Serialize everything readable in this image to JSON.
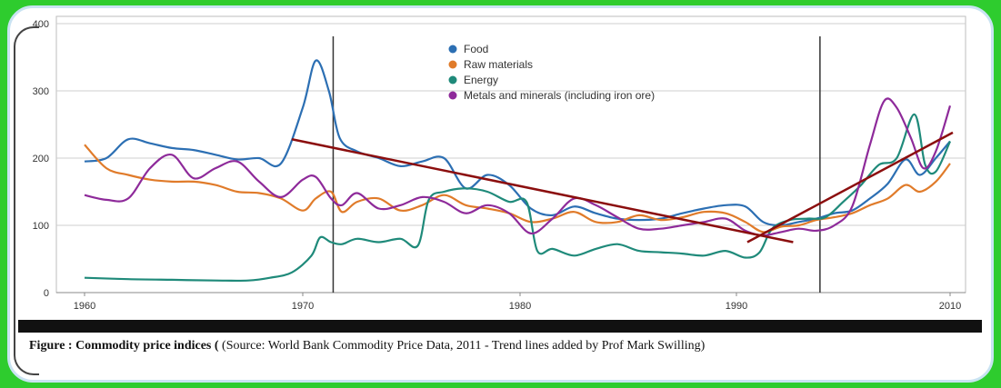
{
  "chart_data": {
    "type": "line",
    "title": "",
    "xlabel": "",
    "ylabel": "",
    "x_ticks": [
      "1960",
      "1970",
      "1980",
      "1990",
      "2010"
    ],
    "y_ticks": [
      "0",
      "100",
      "200",
      "300",
      "400"
    ],
    "xlim": [
      1959,
      2010.5
    ],
    "ylim": [
      0,
      400
    ],
    "grid": "horizontal",
    "legend_position": "top-center",
    "series": [
      {
        "name": "Food",
        "color": "#2c6fb3",
        "points": [
          [
            1960,
            195
          ],
          [
            1961,
            200
          ],
          [
            1962,
            228
          ],
          [
            1963,
            222
          ],
          [
            1964,
            215
          ],
          [
            1965,
            212
          ],
          [
            1966,
            205
          ],
          [
            1967,
            198
          ],
          [
            1968,
            200
          ],
          [
            1969,
            192
          ],
          [
            1970,
            275
          ],
          [
            1970.6,
            345
          ],
          [
            1971.2,
            300
          ],
          [
            1971.7,
            230
          ],
          [
            1972.5,
            210
          ],
          [
            1973.5,
            200
          ],
          [
            1974.5,
            188
          ],
          [
            1975.5,
            195
          ],
          [
            1976.5,
            200
          ],
          [
            1977.5,
            155
          ],
          [
            1978.5,
            175
          ],
          [
            1979.5,
            160
          ],
          [
            1980.5,
            125
          ],
          [
            1981.5,
            115
          ],
          [
            1982.5,
            128
          ],
          [
            1983.5,
            118
          ],
          [
            1984.5,
            110
          ],
          [
            1985.5,
            108
          ],
          [
            1986.5,
            110
          ],
          [
            1987.5,
            118
          ],
          [
            1988.5,
            125
          ],
          [
            1989.5,
            130
          ],
          [
            1990.5,
            128
          ],
          [
            1991.5,
            105
          ],
          [
            1992.5,
            100
          ],
          [
            1993.5,
            105
          ],
          [
            1994.5,
            110
          ],
          [
            1995.5,
            118
          ],
          [
            1996.5,
            122
          ],
          [
            1997.5,
            140
          ],
          [
            1998.5,
            162
          ],
          [
            1999.5,
            198
          ],
          [
            2000.3,
            175
          ],
          [
            2001.2,
            200
          ],
          [
            2002,
            225
          ]
        ]
      },
      {
        "name": "Raw materials",
        "color": "#e07b2a",
        "points": [
          [
            1960,
            220
          ],
          [
            1961,
            185
          ],
          [
            1962,
            175
          ],
          [
            1963,
            168
          ],
          [
            1964,
            165
          ],
          [
            1965,
            165
          ],
          [
            1966,
            160
          ],
          [
            1967,
            150
          ],
          [
            1968,
            148
          ],
          [
            1969,
            140
          ],
          [
            1970,
            122
          ],
          [
            1970.6,
            140
          ],
          [
            1971.3,
            150
          ],
          [
            1971.8,
            120
          ],
          [
            1972.5,
            135
          ],
          [
            1973.5,
            140
          ],
          [
            1974.5,
            122
          ],
          [
            1975.5,
            130
          ],
          [
            1976.5,
            145
          ],
          [
            1977.5,
            130
          ],
          [
            1978.5,
            125
          ],
          [
            1979.5,
            118
          ],
          [
            1980.5,
            105
          ],
          [
            1981.5,
            110
          ],
          [
            1982.5,
            120
          ],
          [
            1983.5,
            105
          ],
          [
            1984.5,
            105
          ],
          [
            1985.5,
            115
          ],
          [
            1986.5,
            108
          ],
          [
            1987.5,
            112
          ],
          [
            1988.5,
            120
          ],
          [
            1989.5,
            118
          ],
          [
            1990.5,
            105
          ],
          [
            1991.5,
            90
          ],
          [
            1992.5,
            98
          ],
          [
            1993.5,
            100
          ],
          [
            1994.5,
            108
          ],
          [
            1995.5,
            112
          ],
          [
            1996.5,
            118
          ],
          [
            1997.5,
            130
          ],
          [
            1998.5,
            140
          ],
          [
            1999.5,
            160
          ],
          [
            2000.3,
            150
          ],
          [
            2001.2,
            165
          ],
          [
            2002,
            192
          ]
        ]
      },
      {
        "name": "Energy",
        "color": "#1f8a7a",
        "points": [
          [
            1960,
            22
          ],
          [
            1962,
            20
          ],
          [
            1964,
            19
          ],
          [
            1966,
            18
          ],
          [
            1967.5,
            18
          ],
          [
            1968.5,
            22
          ],
          [
            1969.5,
            30
          ],
          [
            1970.4,
            55
          ],
          [
            1970.8,
            82
          ],
          [
            1971.3,
            75
          ],
          [
            1971.8,
            72
          ],
          [
            1972.5,
            80
          ],
          [
            1973.5,
            75
          ],
          [
            1974.5,
            80
          ],
          [
            1975.3,
            70
          ],
          [
            1975.8,
            138
          ],
          [
            1976.5,
            150
          ],
          [
            1977.5,
            155
          ],
          [
            1978.5,
            150
          ],
          [
            1979.5,
            135
          ],
          [
            1980.3,
            135
          ],
          [
            1980.8,
            62
          ],
          [
            1981.5,
            65
          ],
          [
            1982.5,
            55
          ],
          [
            1983.5,
            65
          ],
          [
            1984.5,
            72
          ],
          [
            1985.5,
            62
          ],
          [
            1986.5,
            60
          ],
          [
            1987.5,
            58
          ],
          [
            1988.5,
            55
          ],
          [
            1989.5,
            62
          ],
          [
            1990.5,
            52
          ],
          [
            1991.3,
            60
          ],
          [
            1992,
            95
          ],
          [
            1993,
            108
          ],
          [
            1994,
            110
          ],
          [
            1995,
            112
          ],
          [
            1996,
            135
          ],
          [
            1997,
            160
          ],
          [
            1998,
            190
          ],
          [
            1999,
            200
          ],
          [
            2000,
            265
          ],
          [
            2000.6,
            190
          ],
          [
            2001.2,
            180
          ],
          [
            2002,
            225
          ]
        ]
      },
      {
        "name": "Metals and minerals (including iron ore)",
        "color": "#8e2a9a",
        "points": [
          [
            1960,
            145
          ],
          [
            1961,
            138
          ],
          [
            1962,
            140
          ],
          [
            1963,
            185
          ],
          [
            1964,
            205
          ],
          [
            1965,
            170
          ],
          [
            1966,
            185
          ],
          [
            1967,
            195
          ],
          [
            1968,
            165
          ],
          [
            1969,
            142
          ],
          [
            1970,
            168
          ],
          [
            1970.6,
            172
          ],
          [
            1971.3,
            140
          ],
          [
            1971.8,
            130
          ],
          [
            1972.5,
            148
          ],
          [
            1973.5,
            125
          ],
          [
            1974.5,
            130
          ],
          [
            1975.5,
            142
          ],
          [
            1976.5,
            135
          ],
          [
            1977.5,
            118
          ],
          [
            1978.5,
            130
          ],
          [
            1979.5,
            118
          ],
          [
            1980.5,
            88
          ],
          [
            1981.5,
            110
          ],
          [
            1982.5,
            140
          ],
          [
            1983.5,
            130
          ],
          [
            1984.5,
            112
          ],
          [
            1985.5,
            95
          ],
          [
            1986.5,
            95
          ],
          [
            1987.5,
            100
          ],
          [
            1988.5,
            105
          ],
          [
            1989.5,
            110
          ],
          [
            1990.5,
            92
          ],
          [
            1991.5,
            85
          ],
          [
            1992.5,
            90
          ],
          [
            1993.5,
            95
          ],
          [
            1994.5,
            92
          ],
          [
            1995.5,
            100
          ],
          [
            1996.5,
            128
          ],
          [
            1997.5,
            220
          ],
          [
            1998.3,
            285
          ],
          [
            1999,
            275
          ],
          [
            1999.8,
            230
          ],
          [
            2000.5,
            185
          ],
          [
            2001.2,
            210
          ],
          [
            2002,
            278
          ]
        ]
      }
    ],
    "trend_lines": [
      {
        "color": "#8b0e0e",
        "from": [
          1969.5,
          228
        ],
        "to": [
          1995.2,
          75
        ]
      },
      {
        "color": "#8b0e0e",
        "from": [
          1991,
          75
        ],
        "to": [
          2010,
          238
        ]
      }
    ],
    "vertical_lines": [
      1971.4,
      1994.6
    ]
  },
  "caption": {
    "lead": "Figure : Commodity price indices (",
    "text": " (Source: World Bank Commodity Price Data, 2011 - Trend lines added by Prof Mark Swilling)"
  }
}
